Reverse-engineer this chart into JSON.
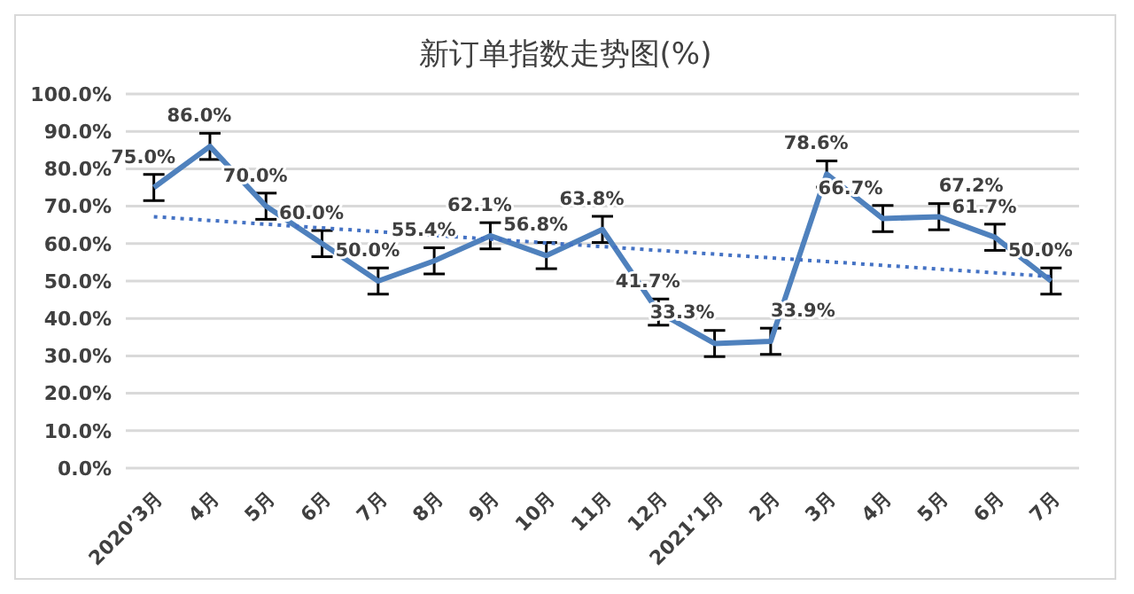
{
  "chart_data": {
    "type": "line",
    "title": "新订单指数走势图(%)",
    "categories": [
      "2020’3月",
      "4月",
      "5月",
      "6月",
      "7月",
      "8月",
      "9月",
      "10月",
      "11月",
      "12月",
      "2021’1月",
      "2月",
      "3月",
      "4月",
      "5月",
      "6月",
      "7月"
    ],
    "series": [
      {
        "color": "#4f81bd",
        "values": [
          75.0,
          86.0,
          70.0,
          60.0,
          50.0,
          55.4,
          62.1,
          56.8,
          63.8,
          41.7,
          33.3,
          33.9,
          78.6,
          66.7,
          67.2,
          61.7,
          50.0
        ],
        "errors": [
          3.5,
          3.5,
          3.5,
          3.5,
          3.5,
          3.5,
          3.5,
          3.5,
          3.5,
          3.5,
          3.5,
          3.5,
          3.5,
          3.5,
          3.5,
          3.5,
          3.5
        ],
        "value_labels": [
          "75.0%",
          "86.0%",
          "70.0%",
          "60.0%",
          "50.0%",
          "55.4%",
          "62.1%",
          "56.8%",
          "63.8%",
          "41.7%",
          "33.3%",
          "33.9%",
          "78.6%",
          "66.7%",
          "67.2%",
          "61.7%",
          "50.0%"
        ]
      },
      {
        "type": "line",
        "color": "#4472c4",
        "line_style": "dotted",
        "values": [
          67.2,
          66.2,
          65.2,
          64.2,
          63.2,
          62.2,
          61.2,
          60.2,
          59.2,
          58.2,
          57.2,
          56.2,
          55.2,
          54.2,
          53.2,
          52.2,
          51.2
        ]
      }
    ],
    "ylim": [
      0,
      100
    ],
    "yticks": [
      {
        "value": 0,
        "label": "0.0%"
      },
      {
        "value": 10,
        "label": "10.0%"
      },
      {
        "value": 20,
        "label": "20.0%"
      },
      {
        "value": 30,
        "label": "30.0%"
      },
      {
        "value": 40,
        "label": "40.0%"
      },
      {
        "value": 50,
        "label": "50.0%"
      },
      {
        "value": 60,
        "label": "60.0%"
      },
      {
        "value": 70,
        "label": "70.0%"
      },
      {
        "value": 80,
        "label": "80.0%"
      },
      {
        "value": 90,
        "label": "90.0%"
      },
      {
        "value": 100,
        "label": "100.0%"
      }
    ],
    "grid": "y",
    "marker": "none"
  }
}
